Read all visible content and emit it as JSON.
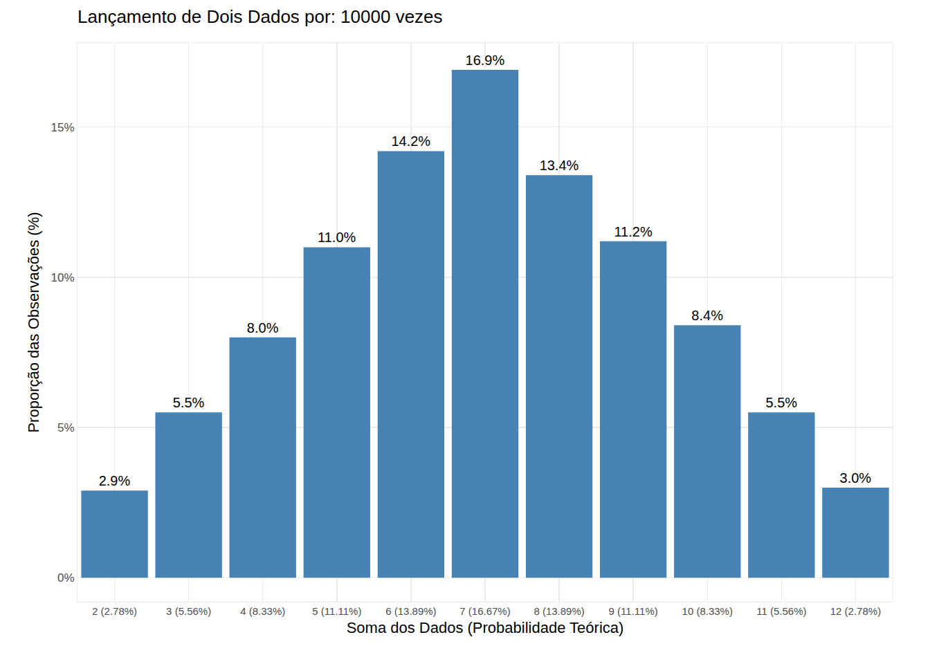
{
  "chart_data": {
    "type": "bar",
    "title": "Lançamento de Dois Dados por: 10000 vezes",
    "x_label": "Soma dos Dados (Probabilidade Teórica)",
    "y_label": "Proporção das Observações (%)",
    "categories": [
      "2 (2.78%)",
      "3 (5.56%)",
      "4 (8.33%)",
      "5 (11.11%)",
      "6 (13.89%)",
      "7 (16.67%)",
      "8 (13.89%)",
      "9 (11.11%)",
      "10 (8.33%)",
      "11 (5.56%)",
      "12 (2.78%)"
    ],
    "values": [
      2.9,
      5.5,
      8.0,
      11.0,
      14.2,
      16.9,
      13.4,
      11.2,
      8.4,
      5.5,
      3.0
    ],
    "value_labels": [
      "2.9%",
      "5.5%",
      "8.0%",
      "11.0%",
      "14.2%",
      "16.9%",
      "13.4%",
      "11.2%",
      "8.4%",
      "5.5%",
      "3.0%"
    ],
    "data_labels": true,
    "color": "#4682b4",
    "ylim": [
      -0.8,
      17.8
    ],
    "yticks": [
      {
        "value": 0,
        "label": "0%"
      },
      {
        "value": 5,
        "label": "5%"
      },
      {
        "value": 10,
        "label": "10%"
      },
      {
        "value": 15,
        "label": "15%"
      }
    ],
    "grid": true
  }
}
